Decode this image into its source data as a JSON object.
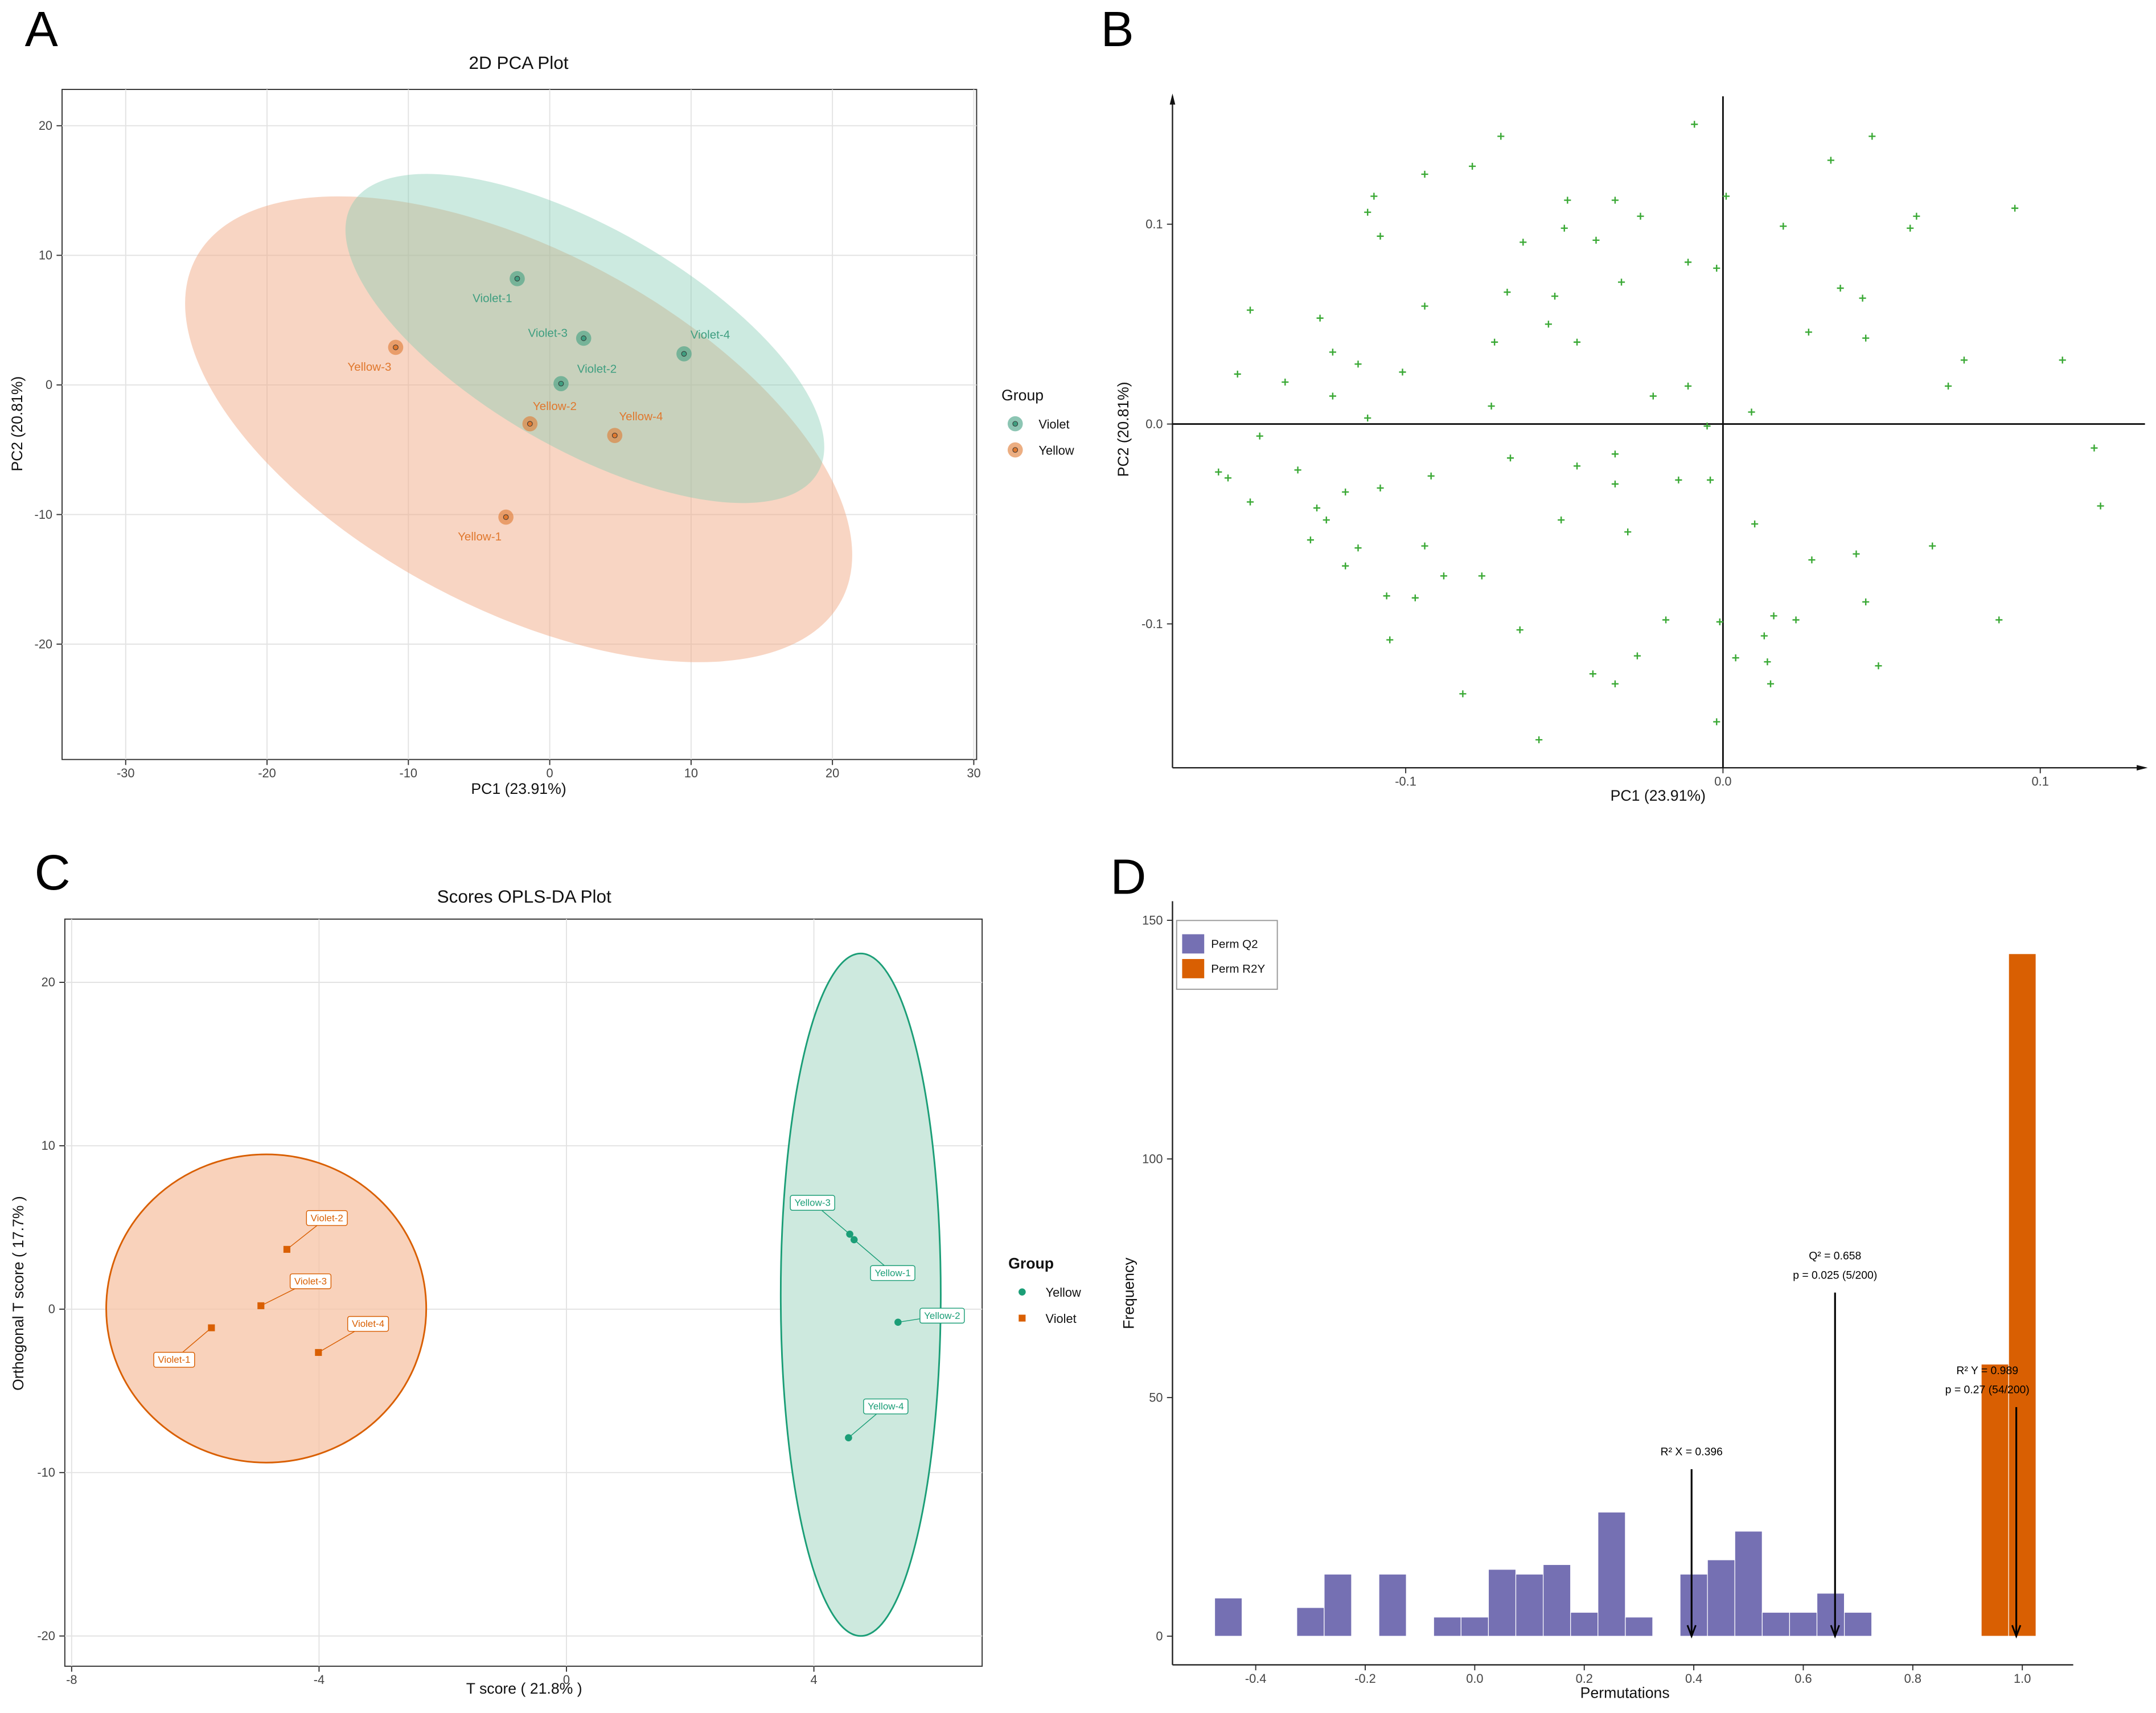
{
  "chart_data": [
    {
      "type": "scatter",
      "panel_label": "A",
      "title": "2D PCA Plot",
      "xlabel": "PC1 (23.91%)",
      "ylabel": "PC2 (20.81%)",
      "xlim": [
        -34.5,
        30.2
      ],
      "ylim": [
        -28.9,
        22.8
      ],
      "xticks": [
        -30,
        -20,
        -10,
        0,
        10,
        20,
        30
      ],
      "yticks": [
        -20,
        -10,
        0,
        10,
        20
      ],
      "grid": true,
      "legend_title": "Group",
      "series": [
        {
          "name": "Violet",
          "color": "#3f9e80",
          "marker": "ring",
          "labels": [
            "Violet-1",
            "Violet-3",
            "Violet-2",
            "Violet-4"
          ],
          "x": [
            -2.3,
            2.4,
            0.8,
            9.5
          ],
          "values": [
            8.2,
            3.6,
            0.1,
            2.4
          ]
        },
        {
          "name": "Yellow",
          "color": "#e0782e",
          "marker": "ring",
          "labels": [
            "Yellow-3",
            "Yellow-2",
            "Yellow-4",
            "Yellow-1"
          ],
          "x": [
            -10.9,
            -1.4,
            4.6,
            -3.1
          ],
          "values": [
            2.9,
            -3.0,
            -3.9,
            -10.2
          ]
        }
      ]
    },
    {
      "type": "scatter",
      "panel_label": "B",
      "xlabel": "PC1 (23.91%)",
      "ylabel": "PC2 (20.81%)",
      "xlim": [
        -0.1735,
        0.133
      ],
      "ylim": [
        -0.172,
        0.164
      ],
      "xticks": [
        -0.1,
        {
          "value": 0,
          "label": "0.0"
        },
        0.1
      ],
      "yticks": [
        -0.1,
        {
          "value": 0,
          "label": "0.0"
        },
        0.1
      ],
      "grid": false,
      "zero_lines": true,
      "series": [
        {
          "color": "#3aa935",
          "marker": "plus",
          "x": [
            -0.07,
            -0.009,
            0.047,
            -0.094,
            -0.079,
            0.034,
            0.092,
            -0.11,
            -0.049,
            -0.034,
            0.001,
            -0.112,
            -0.026,
            0.019,
            0.061,
            0.059,
            -0.05,
            -0.108,
            -0.063,
            -0.04,
            -0.011,
            -0.002,
            -0.032,
            0.037,
            -0.068,
            -0.053,
            0.044,
            -0.149,
            -0.094,
            -0.127,
            -0.055,
            0.027,
            0.045,
            -0.072,
            -0.046,
            -0.123,
            -0.115,
            0.076,
            0.107,
            -0.153,
            -0.138,
            -0.101,
            0.071,
            -0.123,
            -0.022,
            -0.011,
            -0.073,
            -0.112,
            0.009,
            -0.146,
            -0.005,
            0.117,
            -0.067,
            -0.046,
            -0.034,
            -0.134,
            -0.159,
            -0.156,
            -0.092,
            -0.014,
            -0.004,
            -0.108,
            -0.034,
            -0.119,
            -0.128,
            -0.149,
            0.119,
            -0.125,
            -0.051,
            0.01,
            -0.03,
            -0.13,
            -0.094,
            -0.115,
            0.066,
            0.042,
            0.028,
            -0.119,
            -0.088,
            -0.076,
            -0.106,
            -0.097,
            0.045,
            -0.018,
            -0.001,
            0.087,
            0.016,
            0.023,
            0.013,
            -0.064,
            -0.105,
            0.004,
            -0.027,
            0.014,
            0.049,
            -0.041,
            -0.034,
            0.015,
            -0.082,
            -0.002,
            -0.058
          ],
          "values": [
            0.144,
            0.15,
            0.144,
            0.125,
            0.129,
            0.132,
            0.108,
            0.114,
            0.112,
            0.112,
            0.114,
            0.106,
            0.104,
            0.099,
            0.104,
            0.098,
            0.098,
            0.094,
            0.091,
            0.092,
            0.081,
            0.078,
            0.071,
            0.068,
            0.066,
            0.064,
            0.063,
            0.057,
            0.059,
            0.053,
            0.05,
            0.046,
            0.043,
            0.041,
            0.041,
            0.036,
            0.03,
            0.032,
            0.032,
            0.025,
            0.021,
            0.026,
            0.019,
            0.014,
            0.014,
            0.019,
            0.009,
            0.003,
            0.006,
            -0.006,
            -0.001,
            -0.012,
            -0.017,
            -0.021,
            -0.015,
            -0.023,
            -0.024,
            -0.027,
            -0.026,
            -0.028,
            -0.028,
            -0.032,
            -0.03,
            -0.034,
            -0.042,
            -0.039,
            -0.041,
            -0.048,
            -0.048,
            -0.05,
            -0.054,
            -0.058,
            -0.061,
            -0.062,
            -0.061,
            -0.065,
            -0.068,
            -0.071,
            -0.076,
            -0.076,
            -0.086,
            -0.087,
            -0.089,
            -0.098,
            -0.099,
            -0.098,
            -0.096,
            -0.098,
            -0.106,
            -0.103,
            -0.108,
            -0.117,
            -0.116,
            -0.119,
            -0.121,
            -0.125,
            -0.13,
            -0.13,
            -0.135,
            -0.149,
            -0.158
          ]
        }
      ]
    },
    {
      "type": "scatter",
      "panel_label": "C",
      "title": "Scores OPLS-DA Plot",
      "xlabel": "T score ( 21.8% )",
      "ylabel": "Orthogonal T score ( 17.7% )",
      "xlim": [
        -8.11,
        6.72
      ],
      "ylim": [
        -21.85,
        23.87
      ],
      "xticks": [
        -8,
        -4,
        0,
        4
      ],
      "yticks": [
        -20,
        -10,
        0,
        10,
        20
      ],
      "grid": true,
      "legend_title": "Group",
      "label_box": true,
      "series": [
        {
          "name": "Yellow",
          "color": "#1b9e77",
          "marker": "circle",
          "labels": [
            "Yellow-3",
            "Yellow-1",
            "Yellow-2",
            "Yellow-4"
          ],
          "x": [
            4.58,
            4.65,
            5.36,
            4.56
          ],
          "values": [
            4.59,
            4.25,
            -0.8,
            -7.87
          ]
        },
        {
          "name": "Violet",
          "color": "#d95f02",
          "marker": "square",
          "labels": [
            "Violet-2",
            "Violet-3",
            "Violet-1",
            "Violet-4"
          ],
          "x": [
            -4.52,
            -4.94,
            -5.74,
            -4.01
          ],
          "values": [
            3.66,
            0.21,
            -1.14,
            -2.65
          ]
        }
      ]
    },
    {
      "type": "histogram",
      "panel_label": "D",
      "xlabel": "Permutations",
      "ylabel": "Frequency",
      "xlim": [
        -0.552,
        1.093
      ],
      "ylim": [
        -6,
        154
      ],
      "xticks": [
        -0.4,
        -0.2,
        {
          "value": 0,
          "label": "0.0"
        },
        0.2,
        0.4,
        0.6,
        0.8,
        {
          "value": 1,
          "label": "1.0"
        }
      ],
      "yticks": [
        0,
        50,
        100,
        150
      ],
      "grid": false,
      "series": [
        {
          "name": "Perm Q2",
          "color": "#7570b3",
          "bins": [
            -0.475,
            -0.425,
            -0.375,
            -0.325,
            -0.275,
            -0.225,
            -0.175,
            -0.125,
            -0.075,
            -0.025,
            0.025,
            0.075,
            0.125,
            0.175,
            0.225,
            0.275,
            0.325,
            0.375,
            0.425,
            0.475,
            0.525,
            0.575,
            0.625,
            0.675,
            0.725
          ],
          "values": [
            8,
            0,
            0,
            6,
            13,
            0,
            13,
            0,
            4,
            4,
            14,
            13,
            15,
            5,
            26,
            4,
            0,
            13,
            16,
            22,
            5,
            5,
            9,
            5
          ]
        },
        {
          "name": "Perm R2Y",
          "color": "#d95f02",
          "bins": [
            0.925,
            0.975,
            1.025
          ],
          "values": [
            57,
            143
          ]
        }
      ],
      "annotations": [
        {
          "x": 0.396,
          "y": 35,
          "lines": [
            "R² X = 0.396"
          ]
        },
        {
          "x": 0.658,
          "y": 72,
          "lines": [
            "Q² = 0.658",
            "p = 0.025 (5/200)"
          ]
        },
        {
          "x": 0.989,
          "y": 48,
          "lines": [
            "R² Y = 0.989",
            "p = 0.27 (54/200)"
          ]
        }
      ]
    }
  ]
}
